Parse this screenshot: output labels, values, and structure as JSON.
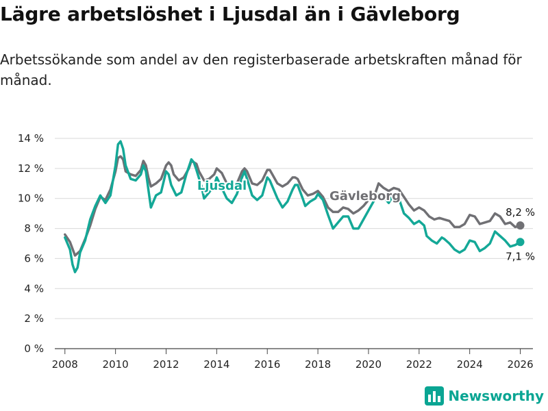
{
  "header": {
    "title": "Lägre arbetslöshet i Ljusdal än i Gävleborg",
    "subtitle": "Arbetssökande som andel av den registerbaserade arbetskraften månad för månad."
  },
  "footer": {
    "brand": "Newsworthy"
  },
  "colors": {
    "ljusdal": "#14a897",
    "gavleborg": "#707074",
    "brand": "#0aa593"
  },
  "chart_data": {
    "type": "line",
    "title": "Lägre arbetslöshet i Ljusdal än i Gävleborg",
    "xlabel": "",
    "ylabel": "",
    "xlim": [
      2007.6,
      2026.5
    ],
    "ylim": [
      0,
      14
    ],
    "x_ticks": [
      2008,
      2010,
      2012,
      2014,
      2016,
      2018,
      2020,
      2022,
      2024,
      2026
    ],
    "x_tick_labels": [
      "2008",
      "2010",
      "2012",
      "2014",
      "2016",
      "2018",
      "2020",
      "2022",
      "2024",
      "2026"
    ],
    "y_ticks": [
      0,
      2,
      4,
      6,
      8,
      10,
      12,
      14
    ],
    "y_tick_labels": [
      "0 %",
      "2 %",
      "4 %",
      "6 %",
      "8 %",
      "10 %",
      "12 %",
      "14 %"
    ],
    "grid": true,
    "series": [
      {
        "name": "Gävleborg",
        "label": "Gävleborg",
        "end_label": "8,2 %",
        "points": [
          [
            2008.0,
            7.6
          ],
          [
            2008.2,
            7.1
          ],
          [
            2008.4,
            6.2
          ],
          [
            2008.6,
            6.5
          ],
          [
            2008.8,
            7.3
          ],
          [
            2009.0,
            8.2
          ],
          [
            2009.2,
            9.3
          ],
          [
            2009.4,
            10.1
          ],
          [
            2009.6,
            9.9
          ],
          [
            2009.8,
            10.6
          ],
          [
            2010.0,
            11.8
          ],
          [
            2010.1,
            12.7
          ],
          [
            2010.2,
            12.8
          ],
          [
            2010.3,
            12.6
          ],
          [
            2010.4,
            11.8
          ],
          [
            2010.6,
            11.6
          ],
          [
            2010.8,
            11.5
          ],
          [
            2011.0,
            11.9
          ],
          [
            2011.1,
            12.5
          ],
          [
            2011.2,
            12.2
          ],
          [
            2011.3,
            11.4
          ],
          [
            2011.4,
            10.8
          ],
          [
            2011.6,
            11.0
          ],
          [
            2011.8,
            11.3
          ],
          [
            2012.0,
            12.2
          ],
          [
            2012.1,
            12.4
          ],
          [
            2012.2,
            12.2
          ],
          [
            2012.3,
            11.6
          ],
          [
            2012.5,
            11.2
          ],
          [
            2012.7,
            11.4
          ],
          [
            2012.9,
            12.0
          ],
          [
            2013.0,
            12.5
          ],
          [
            2013.2,
            12.3
          ],
          [
            2013.3,
            11.8
          ],
          [
            2013.5,
            11.2
          ],
          [
            2013.7,
            11.3
          ],
          [
            2013.9,
            11.6
          ],
          [
            2014.0,
            12.0
          ],
          [
            2014.2,
            11.7
          ],
          [
            2014.4,
            11.0
          ],
          [
            2014.6,
            10.6
          ],
          [
            2014.8,
            11.0
          ],
          [
            2015.0,
            11.8
          ],
          [
            2015.1,
            12.0
          ],
          [
            2015.2,
            11.8
          ],
          [
            2015.4,
            11.0
          ],
          [
            2015.6,
            10.9
          ],
          [
            2015.8,
            11.2
          ],
          [
            2016.0,
            11.9
          ],
          [
            2016.1,
            11.9
          ],
          [
            2016.2,
            11.6
          ],
          [
            2016.4,
            11.0
          ],
          [
            2016.6,
            10.8
          ],
          [
            2016.8,
            11.0
          ],
          [
            2017.0,
            11.4
          ],
          [
            2017.1,
            11.4
          ],
          [
            2017.2,
            11.3
          ],
          [
            2017.4,
            10.6
          ],
          [
            2017.6,
            10.2
          ],
          [
            2017.8,
            10.3
          ],
          [
            2018.0,
            10.5
          ],
          [
            2018.2,
            10.1
          ],
          [
            2018.4,
            9.4
          ],
          [
            2018.6,
            9.1
          ],
          [
            2018.8,
            9.1
          ],
          [
            2019.0,
            9.4
          ],
          [
            2019.2,
            9.3
          ],
          [
            2019.4,
            9.0
          ],
          [
            2019.6,
            9.2
          ],
          [
            2019.8,
            9.5
          ],
          [
            2020.0,
            9.9
          ],
          [
            2020.2,
            10.0
          ],
          [
            2020.4,
            11.0
          ],
          [
            2020.6,
            10.7
          ],
          [
            2020.8,
            10.5
          ],
          [
            2021.0,
            10.7
          ],
          [
            2021.2,
            10.6
          ],
          [
            2021.4,
            10.1
          ],
          [
            2021.6,
            9.6
          ],
          [
            2021.8,
            9.2
          ],
          [
            2022.0,
            9.4
          ],
          [
            2022.2,
            9.2
          ],
          [
            2022.4,
            8.8
          ],
          [
            2022.6,
            8.6
          ],
          [
            2022.8,
            8.7
          ],
          [
            2023.0,
            8.6
          ],
          [
            2023.2,
            8.5
          ],
          [
            2023.4,
            8.1
          ],
          [
            2023.6,
            8.1
          ],
          [
            2023.8,
            8.3
          ],
          [
            2024.0,
            8.9
          ],
          [
            2024.2,
            8.8
          ],
          [
            2024.4,
            8.3
          ],
          [
            2024.6,
            8.4
          ],
          [
            2024.8,
            8.5
          ],
          [
            2025.0,
            9.0
          ],
          [
            2025.2,
            8.8
          ],
          [
            2025.4,
            8.3
          ],
          [
            2025.6,
            8.4
          ],
          [
            2025.8,
            8.1
          ],
          [
            2026.0,
            8.2
          ]
        ]
      },
      {
        "name": "Ljusdal",
        "label": "Ljusdal",
        "end_label": "7,1 %",
        "points": [
          [
            2008.0,
            7.4
          ],
          [
            2008.2,
            6.6
          ],
          [
            2008.3,
            5.6
          ],
          [
            2008.4,
            5.1
          ],
          [
            2008.5,
            5.4
          ],
          [
            2008.6,
            6.4
          ],
          [
            2008.8,
            7.2
          ],
          [
            2009.0,
            8.6
          ],
          [
            2009.2,
            9.5
          ],
          [
            2009.4,
            10.2
          ],
          [
            2009.6,
            9.7
          ],
          [
            2009.8,
            10.2
          ],
          [
            2010.0,
            12.2
          ],
          [
            2010.1,
            13.6
          ],
          [
            2010.2,
            13.8
          ],
          [
            2010.3,
            13.3
          ],
          [
            2010.4,
            12.2
          ],
          [
            2010.6,
            11.3
          ],
          [
            2010.8,
            11.2
          ],
          [
            2011.0,
            11.6
          ],
          [
            2011.1,
            12.2
          ],
          [
            2011.2,
            11.8
          ],
          [
            2011.3,
            10.6
          ],
          [
            2011.4,
            9.4
          ],
          [
            2011.6,
            10.2
          ],
          [
            2011.8,
            10.4
          ],
          [
            2012.0,
            11.8
          ],
          [
            2012.1,
            11.6
          ],
          [
            2012.2,
            10.9
          ],
          [
            2012.4,
            10.2
          ],
          [
            2012.6,
            10.4
          ],
          [
            2012.8,
            11.6
          ],
          [
            2013.0,
            12.6
          ],
          [
            2013.1,
            12.4
          ],
          [
            2013.2,
            11.9
          ],
          [
            2013.4,
            10.8
          ],
          [
            2013.5,
            10.0
          ],
          [
            2013.7,
            10.4
          ],
          [
            2013.9,
            10.9
          ],
          [
            2014.0,
            11.4
          ],
          [
            2014.2,
            10.7
          ],
          [
            2014.4,
            10.0
          ],
          [
            2014.6,
            9.7
          ],
          [
            2014.8,
            10.3
          ],
          [
            2015.0,
            11.4
          ],
          [
            2015.1,
            11.8
          ],
          [
            2015.2,
            11.3
          ],
          [
            2015.4,
            10.2
          ],
          [
            2015.6,
            9.9
          ],
          [
            2015.8,
            10.2
          ],
          [
            2016.0,
            11.4
          ],
          [
            2016.1,
            11.2
          ],
          [
            2016.2,
            10.8
          ],
          [
            2016.4,
            10.0
          ],
          [
            2016.6,
            9.4
          ],
          [
            2016.8,
            9.8
          ],
          [
            2017.0,
            10.6
          ],
          [
            2017.1,
            10.9
          ],
          [
            2017.2,
            10.9
          ],
          [
            2017.4,
            10.0
          ],
          [
            2017.5,
            9.5
          ],
          [
            2017.7,
            9.8
          ],
          [
            2017.9,
            10.0
          ],
          [
            2018.0,
            10.3
          ],
          [
            2018.2,
            9.9
          ],
          [
            2018.4,
            8.9
          ],
          [
            2018.6,
            8.0
          ],
          [
            2018.8,
            8.4
          ],
          [
            2019.0,
            8.8
          ],
          [
            2019.2,
            8.8
          ],
          [
            2019.4,
            8.0
          ],
          [
            2019.6,
            8.0
          ],
          [
            2019.8,
            8.6
          ],
          [
            2020.0,
            9.2
          ],
          [
            2020.2,
            9.8
          ],
          [
            2020.4,
            10.3
          ],
          [
            2020.6,
            10.1
          ],
          [
            2020.8,
            9.7
          ],
          [
            2021.0,
            10.3
          ],
          [
            2021.2,
            10.0
          ],
          [
            2021.4,
            9.0
          ],
          [
            2021.6,
            8.7
          ],
          [
            2021.8,
            8.3
          ],
          [
            2022.0,
            8.5
          ],
          [
            2022.2,
            8.2
          ],
          [
            2022.3,
            7.5
          ],
          [
            2022.5,
            7.2
          ],
          [
            2022.7,
            7.0
          ],
          [
            2022.9,
            7.4
          ],
          [
            2023.0,
            7.3
          ],
          [
            2023.2,
            7.0
          ],
          [
            2023.4,
            6.6
          ],
          [
            2023.6,
            6.4
          ],
          [
            2023.8,
            6.6
          ],
          [
            2024.0,
            7.2
          ],
          [
            2024.2,
            7.1
          ],
          [
            2024.4,
            6.5
          ],
          [
            2024.6,
            6.7
          ],
          [
            2024.8,
            7.0
          ],
          [
            2025.0,
            7.8
          ],
          [
            2025.2,
            7.5
          ],
          [
            2025.4,
            7.2
          ],
          [
            2025.6,
            6.8
          ],
          [
            2025.8,
            6.9
          ],
          [
            2026.0,
            7.1
          ]
        ]
      }
    ]
  }
}
